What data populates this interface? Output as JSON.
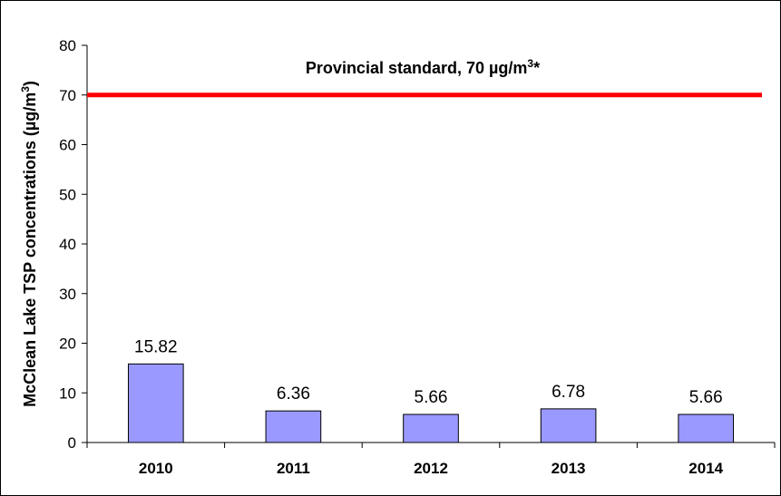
{
  "chart_data": {
    "type": "bar",
    "title": "",
    "xlabel": "",
    "ylabel": {
      "main": "McClean Lake TSP concentrations (µg/m",
      "sup": "3",
      "end": ")"
    },
    "categories": [
      "2010",
      "2011",
      "2012",
      "2013",
      "2014"
    ],
    "values": [
      15.82,
      6.36,
      5.66,
      6.78,
      5.66
    ],
    "data_labels": [
      "15.82",
      "6.36",
      "5.66",
      "6.78",
      "5.66"
    ],
    "ylim": [
      0,
      80
    ],
    "yticks": [
      "0",
      "10",
      "20",
      "30",
      "40",
      "50",
      "60",
      "70",
      "80"
    ],
    "grid": false,
    "legend": "none",
    "bar_color": "#9999ff",
    "reference_line": {
      "value": 70,
      "color": "#ff0000",
      "label": {
        "main": "Provincial standard, 70 µg/m",
        "sup": "3",
        "end": "*"
      }
    }
  }
}
